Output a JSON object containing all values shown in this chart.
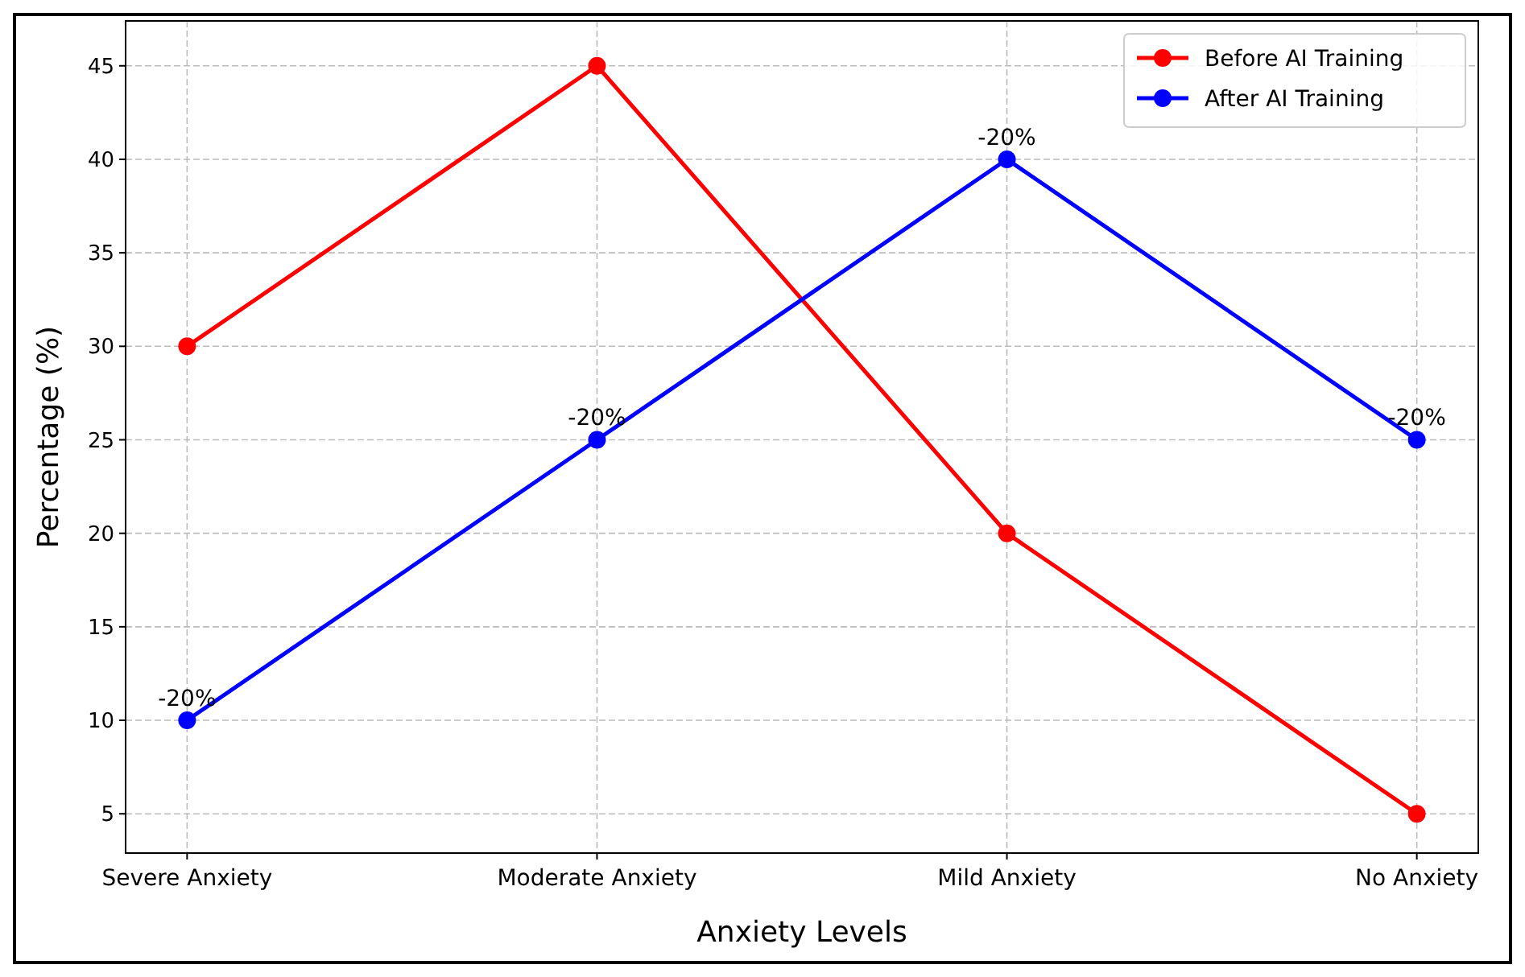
{
  "chart_data": {
    "type": "line",
    "xlabel": "Anxiety Levels",
    "ylabel": "Percentage (%)",
    "categories": [
      "Severe Anxiety",
      "Moderate Anxiety",
      "Mild Anxiety",
      "No Anxiety"
    ],
    "series": [
      {
        "name": "Before AI Training",
        "color": "#ff0000",
        "values": [
          30,
          45,
          20,
          5
        ]
      },
      {
        "name": "After AI Training",
        "color": "#0000ff",
        "values": [
          10,
          25,
          40,
          25
        ]
      }
    ],
    "ylim": [
      2.9,
      47.4
    ],
    "yticks": [
      5,
      10,
      15,
      20,
      25,
      30,
      35,
      40,
      45
    ],
    "grid": true,
    "legend": "top right",
    "marker": "circle",
    "line_style": "solid",
    "annotations": [
      {
        "text": "-20%",
        "x": "Severe Anxiety",
        "y": 10
      },
      {
        "text": "-20%",
        "x": "Moderate Anxiety",
        "y": 25
      },
      {
        "text": "-20%",
        "x": "Mild Anxiety",
        "y": 40
      },
      {
        "text": "-20%",
        "x": "No Anxiety",
        "y": 25
      }
    ]
  }
}
